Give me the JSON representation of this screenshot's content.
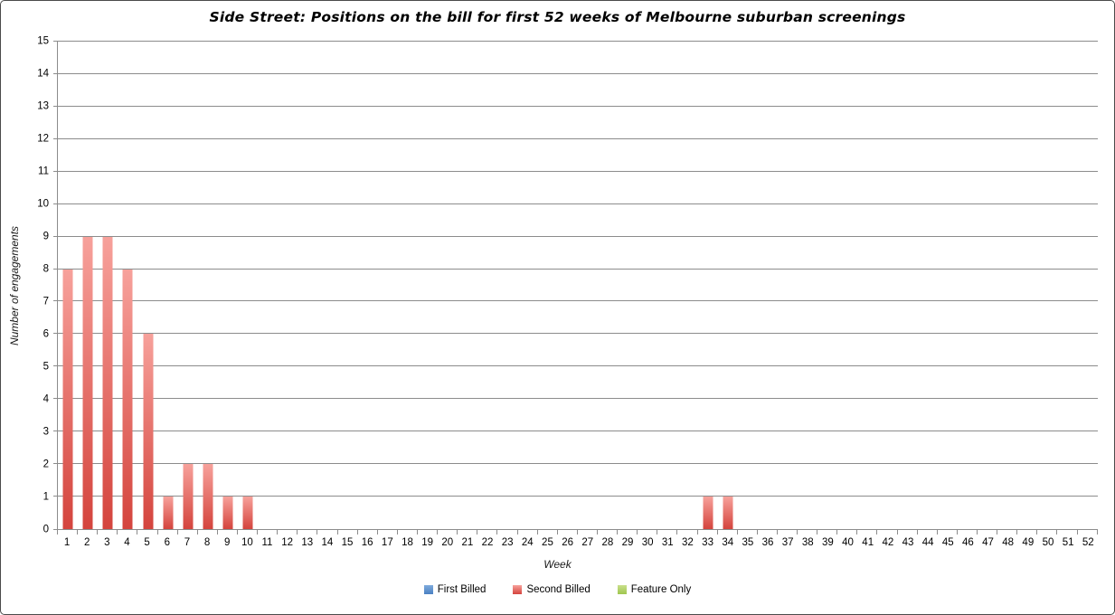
{
  "frame": {
    "background": "#ffffff",
    "border_color": "#4a4a4a",
    "gridline_color": "#8c8c8c",
    "text_color": "#000000"
  },
  "chart_data": {
    "type": "bar",
    "title": "Side Street: Positions on the bill for first 52 weeks of Melbourne suburban screenings",
    "xlabel": "Week",
    "ylabel": "Number of engagements",
    "ylim": [
      0,
      15
    ],
    "ytick_step": 1,
    "grid": true,
    "legend_position": "bottom",
    "categories": [
      1,
      2,
      3,
      4,
      5,
      6,
      7,
      8,
      9,
      10,
      11,
      12,
      13,
      14,
      15,
      16,
      17,
      18,
      19,
      20,
      21,
      22,
      23,
      24,
      25,
      26,
      27,
      28,
      29,
      30,
      31,
      32,
      33,
      34,
      35,
      36,
      37,
      38,
      39,
      40,
      41,
      42,
      43,
      44,
      45,
      46,
      47,
      48,
      49,
      50,
      51,
      52
    ],
    "series": [
      {
        "name": "First Billed",
        "color_top": "#7fabdc",
        "color_bottom": "#4a80c2",
        "values": [
          0,
          0,
          0,
          0,
          0,
          0,
          0,
          0,
          0,
          0,
          0,
          0,
          0,
          0,
          0,
          0,
          0,
          0,
          0,
          0,
          0,
          0,
          0,
          0,
          0,
          0,
          0,
          0,
          0,
          0,
          0,
          0,
          0,
          0,
          0,
          0,
          0,
          0,
          0,
          0,
          0,
          0,
          0,
          0,
          0,
          0,
          0,
          0,
          0,
          0,
          0,
          0
        ]
      },
      {
        "name": "Second Billed",
        "color_top": "#f7a19b",
        "color_bottom": "#d4443d",
        "values": [
          8,
          9,
          9,
          8,
          6,
          1,
          2,
          2,
          1,
          1,
          0,
          0,
          0,
          0,
          0,
          0,
          0,
          0,
          0,
          0,
          0,
          0,
          0,
          0,
          0,
          0,
          0,
          0,
          0,
          0,
          0,
          0,
          1,
          1,
          0,
          0,
          0,
          0,
          0,
          0,
          0,
          0,
          0,
          0,
          0,
          0,
          0,
          0,
          0,
          0,
          0,
          0
        ]
      },
      {
        "name": "Feature Only",
        "color_top": "#c9df8b",
        "color_bottom": "#a0c64f",
        "values": [
          0,
          0,
          0,
          0,
          0,
          0,
          0,
          0,
          0,
          0,
          0,
          0,
          0,
          0,
          0,
          0,
          0,
          0,
          0,
          0,
          0,
          0,
          0,
          0,
          0,
          0,
          0,
          0,
          0,
          0,
          0,
          0,
          0,
          0,
          0,
          0,
          0,
          0,
          0,
          0,
          0,
          0,
          0,
          0,
          0,
          0,
          0,
          0,
          0,
          0,
          0,
          0
        ]
      }
    ]
  }
}
